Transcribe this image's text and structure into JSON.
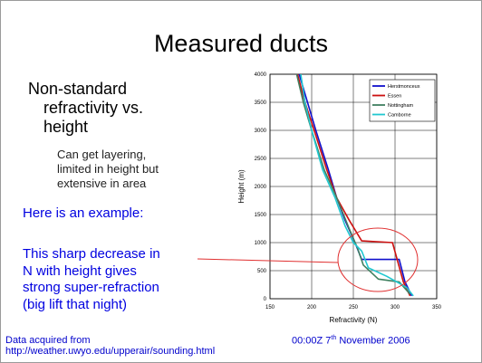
{
  "slide": {
    "title": "Measured ducts",
    "bullet_line1": "Non-standard",
    "bullet_line2": "refractivity vs.",
    "bullet_line3": "height",
    "sub_line1": "Can get layering,",
    "sub_line2": "limited in height but",
    "sub_line3": "extensive in area",
    "example": "Here is an example:",
    "note_line1": "This sharp decrease in",
    "note_line2": "N with height gives",
    "note_line3": "strong super-refraction",
    "note_line4": "(big lift that night)",
    "source_line1": "Data acquired from",
    "source_line2": "http://weather.uwyo.edu/upperair/sounding.html",
    "date_prefix": "00:00Z 7",
    "date_sup": "th",
    "date_suffix": " November 2006",
    "colors": {
      "text_blue": "#0000e0",
      "annotation_red": "#e03030"
    }
  },
  "chart_data": {
    "type": "line",
    "xlabel": "Refractivity (N)",
    "ylabel": "Height (m)",
    "xlim": [
      150,
      350
    ],
    "ylim": [
      0,
      4000
    ],
    "xticks": [
      150,
      200,
      250,
      300,
      350
    ],
    "yticks": [
      0,
      500,
      1000,
      1500,
      2000,
      2500,
      3000,
      3500,
      4000
    ],
    "grid": true,
    "legend_position": "top-right",
    "series": [
      {
        "name": "Herstmonceux",
        "color": "#1010cc",
        "points": [
          [
            320,
            50
          ],
          [
            312,
            300
          ],
          [
            305,
            700
          ],
          [
            260,
            700
          ],
          [
            252,
            1000
          ],
          [
            240,
            1400
          ],
          [
            230,
            1800
          ],
          [
            220,
            2300
          ],
          [
            205,
            3000
          ],
          [
            195,
            3500
          ],
          [
            185,
            4000
          ]
        ]
      },
      {
        "name": "Essen",
        "color": "#cc1010",
        "points": [
          [
            318,
            50
          ],
          [
            310,
            300
          ],
          [
            297,
            1000
          ],
          [
            260,
            1030
          ],
          [
            245,
            1400
          ],
          [
            230,
            1800
          ],
          [
            218,
            2300
          ],
          [
            203,
            3000
          ],
          [
            192,
            3500
          ],
          [
            183,
            4000
          ]
        ]
      },
      {
        "name": "Nottingham",
        "color": "#408060",
        "points": [
          [
            318,
            80
          ],
          [
            305,
            300
          ],
          [
            280,
            350
          ],
          [
            262,
            600
          ],
          [
            255,
            900
          ],
          [
            245,
            1250
          ],
          [
            230,
            1800
          ],
          [
            215,
            2300
          ],
          [
            200,
            3000
          ],
          [
            190,
            3500
          ],
          [
            182,
            4000
          ]
        ]
      },
      {
        "name": "Camborne",
        "color": "#20c8d0",
        "points": [
          [
            322,
            50
          ],
          [
            314,
            200
          ],
          [
            290,
            400
          ],
          [
            268,
            550
          ],
          [
            260,
            850
          ],
          [
            250,
            1000
          ],
          [
            240,
            1300
          ],
          [
            228,
            1800
          ],
          [
            213,
            2300
          ],
          [
            200,
            3000
          ],
          [
            192,
            3500
          ],
          [
            187,
            4000
          ]
        ]
      }
    ]
  }
}
